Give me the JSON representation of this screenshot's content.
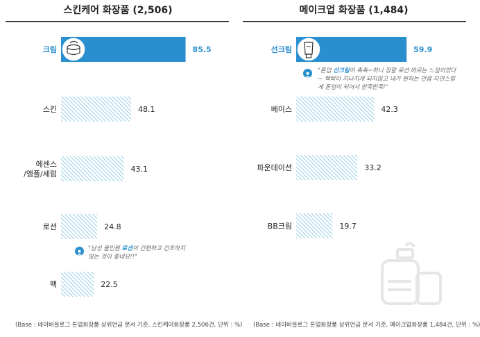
{
  "colors": {
    "accent": "#2a8fcf",
    "hatch": "#7cc0dd",
    "rule": "#3a3a3a"
  },
  "charts": {
    "skincare": {
      "title": "스킨케어 화장품 (2,506)",
      "source": "(Base : 네이버블로그 톤업화장품 상위언급 문서 기준, 스킨케어화장품 2,506건, 단위 : %)",
      "quote_pre": "\"남성 올인원 ",
      "quote_hl": "로션",
      "quote_post": "이 간편하고 건조하지 않는 것이 좋네요!!\"",
      "icon": "cream-jar-icon"
    },
    "makeup": {
      "title": "메이크업 화장품 (1,484)",
      "source": "(Base : 네이버블로그 톤업화장품 상위언급 문서 기준, 메이크업화장품 1,484건, 단위 : %)",
      "quote_pre": "\"톤업 ",
      "quote_hl": "선크림",
      "quote_post": "이 촉촉~하니 정말 로션 바르는 느낌이었다~ 백탁이 지나치게 되지않고 내가 원하는 만큼 자연스럽게 톤업이 되어서 만족만족!\"",
      "icon": "sunscreen-tube-icon"
    }
  },
  "chart_data": [
    {
      "type": "bar",
      "title": "스킨케어 화장품 (2,506)",
      "categories": [
        "크림",
        "스킨",
        "에센스/앰플/세럼",
        "로션",
        "팩"
      ],
      "category_lines": [
        [
          "크림"
        ],
        [
          "스킨"
        ],
        [
          "에센스",
          "/앰플/세럼"
        ],
        [
          "로션"
        ],
        [
          "팩"
        ]
      ],
      "values": [
        85.5,
        48.1,
        43.1,
        24.8,
        22.5
      ],
      "value_labels": [
        "85.5",
        "48.1",
        "43.1",
        "24.8",
        "22.5"
      ],
      "xlim": [
        0,
        100
      ],
      "orientation": "horizontal",
      "highlight_index": 0
    },
    {
      "type": "bar",
      "title": "메이크업 화장품 (1,484)",
      "categories": [
        "선크림",
        "베이스",
        "파운데이션",
        "BB크림"
      ],
      "category_lines": [
        [
          "선크림"
        ],
        [
          "베이스"
        ],
        [
          "파운데이션"
        ],
        [
          "BB크림"
        ]
      ],
      "values": [
        59.9,
        42.3,
        33.2,
        19.7
      ],
      "value_labels": [
        "59.9",
        "42.3",
        "33.2",
        "19.7"
      ],
      "xlim": [
        0,
        70
      ],
      "orientation": "horizontal",
      "highlight_index": 0
    }
  ]
}
